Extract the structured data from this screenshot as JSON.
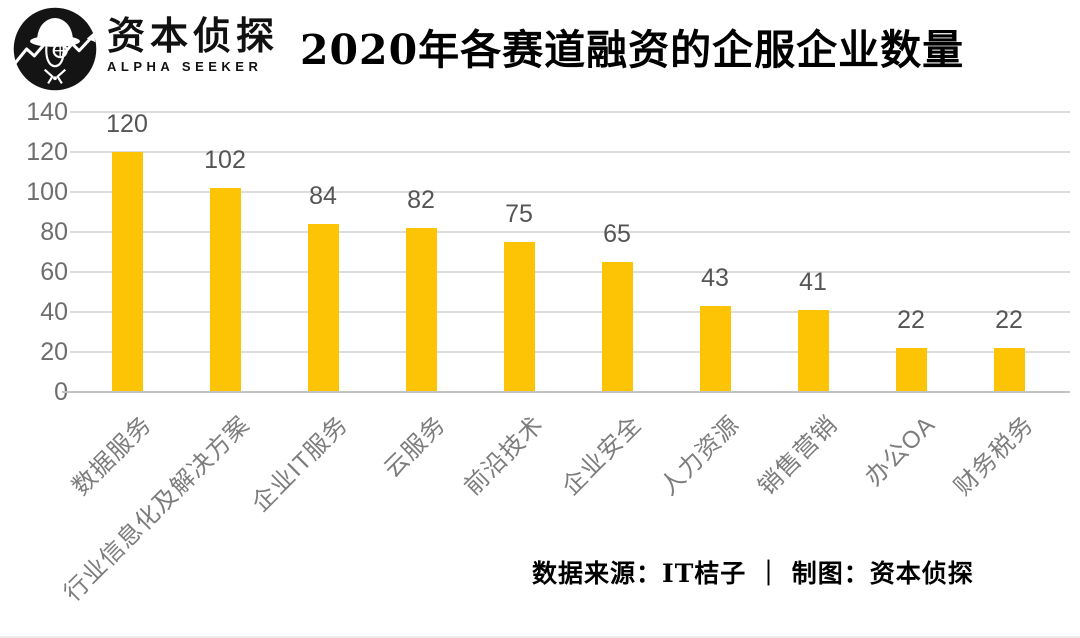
{
  "header": {
    "brand_cn": "资本侦探",
    "brand_en": "ALPHA SEEKER",
    "title": "2020年各赛道融资的企服企业数量"
  },
  "chart_data": {
    "type": "bar",
    "title": "2020年各赛道融资的企服企业数量",
    "categories": [
      "数据服务",
      "行业信息化及解决方案",
      "企业IT服务",
      "云服务",
      "前沿技术",
      "企业安全",
      "人力资源",
      "销售营销",
      "办公OA",
      "财务税务"
    ],
    "values": [
      120,
      102,
      84,
      82,
      75,
      65,
      43,
      41,
      22,
      22
    ],
    "xlabel": "",
    "ylabel": "",
    "ylim": [
      0,
      140
    ],
    "ytick_step": 20,
    "ytick_labels": [
      "0",
      "20",
      "40",
      "60",
      "80",
      "100",
      "120",
      "140"
    ],
    "grid": true,
    "legend": "none",
    "bar_color": "#FDC406",
    "value_label_color": "#555555",
    "tick_label_color": "#6e6e6e",
    "category_label_color": "#7d7d7d",
    "gridline_color": "#dcdcdc",
    "axis_color": "#c3c3c3"
  },
  "footer": {
    "source_text": "数据来源：IT桔子 ｜ 制图：资本侦探"
  }
}
